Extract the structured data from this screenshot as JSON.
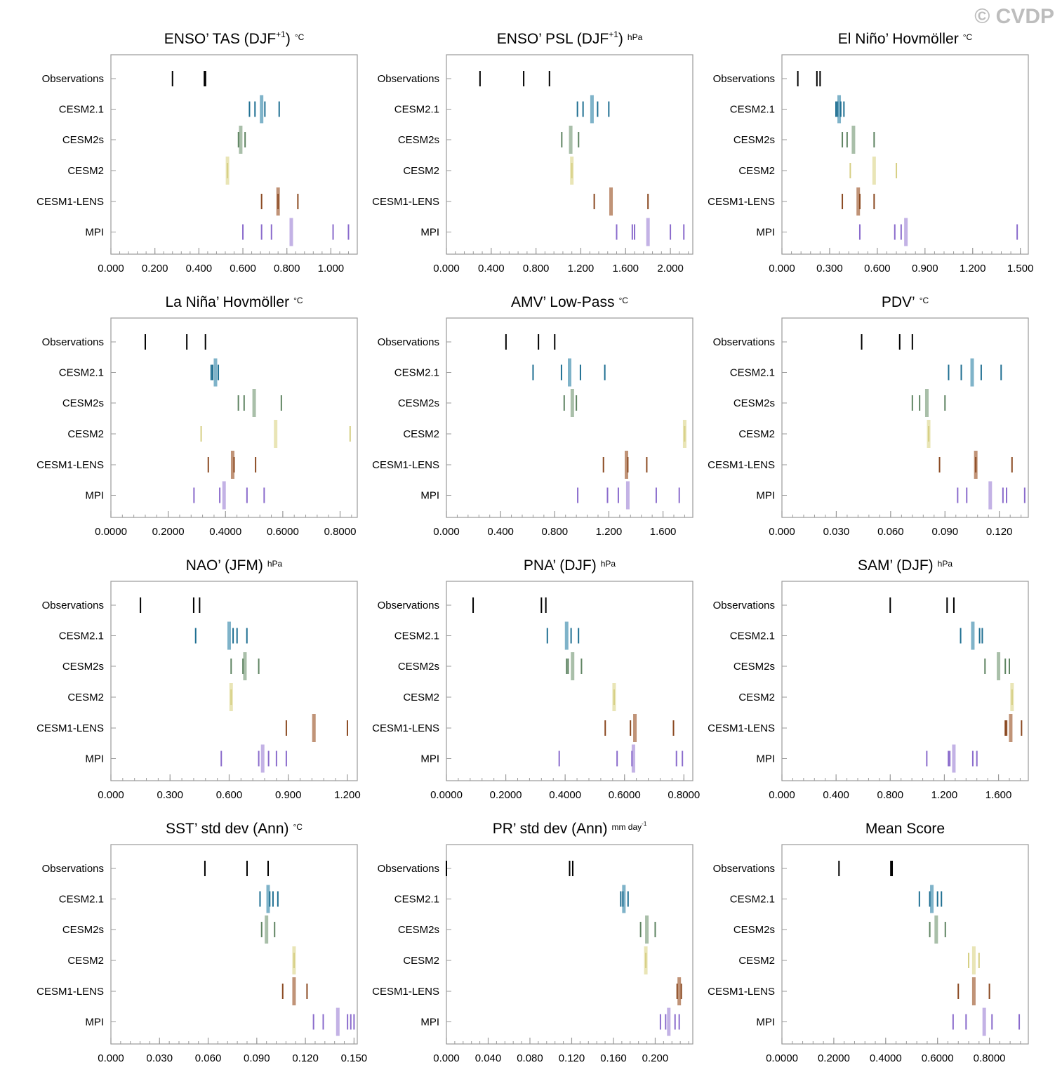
{
  "watermark": "© CVDP",
  "rows": [
    "Observations",
    "CESM2.1",
    "CESM2s",
    "CESM2",
    "CESM1-LENS",
    "MPI"
  ],
  "colors": {
    "Observations": {
      "thin": "#000000",
      "thick": "#000000"
    },
    "CESM2.1": {
      "thin": "#1f6f92",
      "thick": "#7fb3c9"
    },
    "CESM2s": {
      "thin": "#5f8462",
      "thick": "#a9bfa9"
    },
    "CESM2": {
      "thin": "#d6cf84",
      "thick": "#e9e5b6"
    },
    "CESM1-LENS": {
      "thin": "#8b4a22",
      "thick": "#c09377"
    },
    "MPI": {
      "thin": "#8a6bcc",
      "thick": "#c3b2e5"
    }
  },
  "chart_data": [
    {
      "type": "scatter",
      "title": "ENSO’ TAS (DJF",
      "title_sup": "+1",
      "title_tail": ")",
      "units": "°C",
      "xlim": [
        0,
        1.12
      ],
      "xticks": [
        0,
        0.2,
        0.4,
        0.6,
        0.8,
        1.0
      ],
      "xticklabels": [
        "0.000",
        "0.200",
        "0.400",
        "0.600",
        "0.800",
        "1.000"
      ],
      "series": {
        "Observations": {
          "thin": [
            0.28,
            0.425,
            0.43
          ],
          "thick": null
        },
        "CESM2.1": {
          "thin": [
            0.63,
            0.655,
            0.7,
            0.765
          ],
          "thick": 0.685
        },
        "CESM2s": {
          "thin": [
            0.58,
            0.61
          ],
          "thick": 0.59
        },
        "CESM2": {
          "thin": [
            0.53
          ],
          "thick": 0.53
        },
        "CESM1-LENS": {
          "thin": [
            0.685,
            0.76,
            0.85
          ],
          "thick": 0.76
        },
        "MPI": {
          "thin": [
            0.6,
            0.685,
            0.73,
            1.01,
            1.08
          ],
          "thick": 0.82
        }
      }
    },
    {
      "type": "scatter",
      "title": "ENSO’ PSL (DJF",
      "title_sup": "+1",
      "title_tail": ")",
      "units": "hPa",
      "xlim": [
        0,
        2.2
      ],
      "xticks": [
        0,
        0.4,
        0.8,
        1.2,
        1.6,
        2.0
      ],
      "xticklabels": [
        "0.000",
        "0.400",
        "0.800",
        "1.200",
        "1.600",
        "2.000"
      ],
      "series": {
        "Observations": {
          "thin": [
            0.3,
            0.69,
            0.92
          ],
          "thick": null
        },
        "CESM2.1": {
          "thin": [
            1.17,
            1.22,
            1.35,
            1.45
          ],
          "thick": 1.3
        },
        "CESM2s": {
          "thin": [
            1.03,
            1.18
          ],
          "thick": 1.11
        },
        "CESM2": {
          "thin": [
            1.12
          ],
          "thick": 1.12
        },
        "CESM1-LENS": {
          "thin": [
            1.32,
            1.8
          ],
          "thick": 1.47
        },
        "MPI": {
          "thin": [
            1.52,
            1.66,
            1.68,
            2.0,
            2.12
          ],
          "thick": 1.8
        }
      }
    },
    {
      "type": "scatter",
      "title": "El Niño’ Hovmöller",
      "title_sup": "",
      "title_tail": "",
      "units": "°C",
      "xlim": [
        0,
        1.55
      ],
      "xticks": [
        0,
        0.3,
        0.6,
        0.9,
        1.2,
        1.5
      ],
      "xticklabels": [
        "0.000",
        "0.300",
        "0.600",
        "0.900",
        "1.200",
        "1.500"
      ],
      "series": {
        "Observations": {
          "thin": [
            0.1,
            0.22,
            0.24
          ],
          "thick": null
        },
        "CESM2.1": {
          "thin": [
            0.34,
            0.35,
            0.37,
            0.39
          ],
          "thick": 0.36
        },
        "CESM2s": {
          "thin": [
            0.38,
            0.41,
            0.58
          ],
          "thick": 0.45
        },
        "CESM2": {
          "thin": [
            0.43,
            0.72
          ],
          "thick": 0.58
        },
        "CESM1-LENS": {
          "thin": [
            0.38,
            0.49,
            0.58
          ],
          "thick": 0.48
        },
        "MPI": {
          "thin": [
            0.49,
            0.71,
            0.75,
            1.48
          ],
          "thick": 0.78
        }
      }
    },
    {
      "type": "scatter",
      "title": "La Niña’ Hovmöller",
      "title_sup": "",
      "title_tail": "",
      "units": "°C",
      "xlim": [
        0,
        0.86
      ],
      "xticks": [
        0,
        0.2,
        0.4,
        0.6,
        0.8
      ],
      "xticklabels": [
        "0.0000",
        "0.2000",
        "0.4000",
        "0.6000",
        "0.8000"
      ],
      "series": {
        "Observations": {
          "thin": [
            0.12,
            0.265,
            0.33
          ],
          "thick": null
        },
        "CESM2.1": {
          "thin": [
            0.35,
            0.355,
            0.375
          ],
          "thick": 0.365
        },
        "CESM2s": {
          "thin": [
            0.445,
            0.465,
            0.595
          ],
          "thick": 0.5
        },
        "CESM2": {
          "thin": [
            0.315,
            0.835
          ],
          "thick": 0.575
        },
        "CESM1-LENS": {
          "thin": [
            0.34,
            0.43,
            0.505
          ],
          "thick": 0.425
        },
        "MPI": {
          "thin": [
            0.29,
            0.38,
            0.475,
            0.535
          ],
          "thick": 0.395
        }
      }
    },
    {
      "type": "scatter",
      "title": "AMV’ Low-Pass",
      "title_sup": "",
      "title_tail": "",
      "units": "°C",
      "xlim": [
        0,
        1.82
      ],
      "xticks": [
        0,
        0.4,
        0.8,
        1.2,
        1.6
      ],
      "xticklabels": [
        "0.000",
        "0.400",
        "0.800",
        "1.200",
        "1.600"
      ],
      "series": {
        "Observations": {
          "thin": [
            0.44,
            0.68,
            0.8
          ],
          "thick": null
        },
        "CESM2.1": {
          "thin": [
            0.64,
            0.85,
            0.99,
            1.17
          ],
          "thick": 0.91
        },
        "CESM2s": {
          "thin": [
            0.87,
            0.96
          ],
          "thick": 0.93
        },
        "CESM2": {
          "thin": [
            1.76
          ],
          "thick": 1.76
        },
        "CESM1-LENS": {
          "thin": [
            1.16,
            1.34,
            1.48
          ],
          "thick": 1.33
        },
        "MPI": {
          "thin": [
            0.97,
            1.19,
            1.27,
            1.55,
            1.72
          ],
          "thick": 1.34
        }
      }
    },
    {
      "type": "scatter",
      "title": "PDV’",
      "title_sup": "",
      "title_tail": "",
      "units": "°C",
      "xlim": [
        0,
        0.136
      ],
      "xticks": [
        0,
        0.03,
        0.06,
        0.09,
        0.12
      ],
      "xticklabels": [
        "0.000",
        "0.030",
        "0.060",
        "0.090",
        "0.120"
      ],
      "series": {
        "Observations": {
          "thin": [
            0.044,
            0.065,
            0.072
          ],
          "thick": null
        },
        "CESM2.1": {
          "thin": [
            0.092,
            0.099,
            0.11,
            0.121
          ],
          "thick": 0.105
        },
        "CESM2s": {
          "thin": [
            0.072,
            0.076,
            0.09
          ],
          "thick": 0.08
        },
        "CESM2": {
          "thin": [
            0.081
          ],
          "thick": 0.081
        },
        "CESM1-LENS": {
          "thin": [
            0.087,
            0.107,
            0.127
          ],
          "thick": 0.107
        },
        "MPI": {
          "thin": [
            0.097,
            0.102,
            0.122,
            0.124,
            0.134
          ],
          "thick": 0.115
        }
      }
    },
    {
      "type": "scatter",
      "title": "NAO’ (JFM)",
      "title_sup": "",
      "title_tail": "",
      "units": "hPa",
      "xlim": [
        0,
        1.25
      ],
      "xticks": [
        0,
        0.3,
        0.6,
        0.9,
        1.2
      ],
      "xticklabels": [
        "0.000",
        "0.300",
        "0.600",
        "0.900",
        "1.200"
      ],
      "series": {
        "Observations": {
          "thin": [
            0.15,
            0.42,
            0.45
          ],
          "thick": null
        },
        "CESM2.1": {
          "thin": [
            0.43,
            0.62,
            0.64,
            0.69
          ],
          "thick": 0.6
        },
        "CESM2s": {
          "thin": [
            0.61,
            0.67,
            0.75
          ],
          "thick": 0.68
        },
        "CESM2": {
          "thin": [
            0.61
          ],
          "thick": 0.61
        },
        "CESM1-LENS": {
          "thin": [
            0.89,
            1.2
          ],
          "thick": 1.03
        },
        "MPI": {
          "thin": [
            0.56,
            0.75,
            0.8,
            0.84,
            0.89
          ],
          "thick": 0.77
        }
      }
    },
    {
      "type": "scatter",
      "title": "PNA’ (DJF)",
      "title_sup": "",
      "title_tail": "",
      "units": "hPa",
      "xlim": [
        0,
        0.83
      ],
      "xticks": [
        0,
        0.2,
        0.4,
        0.6,
        0.8
      ],
      "xticklabels": [
        "0.0000",
        "0.2000",
        "0.4000",
        "0.6000",
        "0.8000"
      ],
      "series": {
        "Observations": {
          "thin": [
            0.09,
            0.32,
            0.335
          ],
          "thick": null
        },
        "CESM2.1": {
          "thin": [
            0.34,
            0.42,
            0.445
          ],
          "thick": 0.405
        },
        "CESM2s": {
          "thin": [
            0.405,
            0.41,
            0.455
          ],
          "thick": 0.425
        },
        "CESM2": {
          "thin": [
            0.565
          ],
          "thick": 0.565
        },
        "CESM1-LENS": {
          "thin": [
            0.535,
            0.62,
            0.765
          ],
          "thick": 0.635
        },
        "MPI": {
          "thin": [
            0.38,
            0.575,
            0.625,
            0.775,
            0.795
          ],
          "thick": 0.63
        }
      }
    },
    {
      "type": "scatter",
      "title": "SAM’ (DJF)",
      "title_sup": "",
      "title_tail": "",
      "units": "hPa",
      "xlim": [
        0,
        1.82
      ],
      "xticks": [
        0,
        0.4,
        0.8,
        1.2,
        1.6
      ],
      "xticklabels": [
        "0.000",
        "0.400",
        "0.800",
        "1.200",
        "1.600"
      ],
      "series": {
        "Observations": {
          "thin": [
            0.8,
            1.22,
            1.27
          ],
          "thick": null
        },
        "CESM2.1": {
          "thin": [
            1.32,
            1.46,
            1.48
          ],
          "thick": 1.41
        },
        "CESM2s": {
          "thin": [
            1.5,
            1.65,
            1.68
          ],
          "thick": 1.6
        },
        "CESM2": {
          "thin": [
            1.7
          ],
          "thick": 1.7
        },
        "CESM1-LENS": {
          "thin": [
            1.65,
            1.66,
            1.77
          ],
          "thick": 1.69
        },
        "MPI": {
          "thin": [
            1.07,
            1.23,
            1.24,
            1.41,
            1.44
          ],
          "thick": 1.27
        }
      }
    },
    {
      "type": "scatter",
      "title": "SST’ std dev (Ann)",
      "title_sup": "",
      "title_tail": "",
      "units": "°C",
      "xlim": [
        0,
        0.152
      ],
      "xticks": [
        0,
        0.03,
        0.06,
        0.09,
        0.12,
        0.15
      ],
      "xticklabels": [
        "0.000",
        "0.030",
        "0.060",
        "0.090",
        "0.120",
        "0.150"
      ],
      "series": {
        "Observations": {
          "thin": [
            0.058,
            0.084,
            0.097
          ],
          "thick": null
        },
        "CESM2.1": {
          "thin": [
            0.092,
            0.098,
            0.1,
            0.103
          ],
          "thick": 0.097
        },
        "CESM2s": {
          "thin": [
            0.093,
            0.101
          ],
          "thick": 0.096
        },
        "CESM2": {
          "thin": [
            0.113
          ],
          "thick": 0.113
        },
        "CESM1-LENS": {
          "thin": [
            0.106,
            0.121
          ],
          "thick": 0.113
        },
        "MPI": {
          "thin": [
            0.125,
            0.131,
            0.146,
            0.148,
            0.15
          ],
          "thick": 0.14
        }
      }
    },
    {
      "type": "scatter",
      "title": "PR’ std dev (Ann)",
      "title_sup": "",
      "title_tail": "",
      "units": "mm day",
      "units_sup": "-1",
      "xlim": [
        0,
        0.236
      ],
      "xticks": [
        0,
        0.04,
        0.08,
        0.12,
        0.16,
        0.2
      ],
      "xticklabels": [
        "0.000",
        "0.040",
        "0.080",
        "0.120",
        "0.160",
        "0.200"
      ],
      "series": {
        "Observations": {
          "thin": [
            0.0,
            0.118,
            0.121
          ],
          "thick": null
        },
        "CESM2.1": {
          "thin": [
            0.167,
            0.169,
            0.174
          ],
          "thick": 0.17
        },
        "CESM2s": {
          "thin": [
            0.186,
            0.2
          ],
          "thick": 0.192
        },
        "CESM2": {
          "thin": [
            0.191
          ],
          "thick": 0.191
        },
        "CESM1-LENS": {
          "thin": [
            0.221,
            0.225
          ],
          "thick": 0.223
        },
        "MPI": {
          "thin": [
            0.205,
            0.21,
            0.219,
            0.223
          ],
          "thick": 0.213
        }
      }
    },
    {
      "type": "scatter",
      "title": "Mean Score",
      "title_sup": "",
      "title_tail": "",
      "units": "",
      "xlim": [
        0,
        0.95
      ],
      "xticks": [
        0,
        0.2,
        0.4,
        0.6,
        0.8
      ],
      "xticklabels": [
        "0.0000",
        "0.2000",
        "0.4000",
        "0.6000",
        "0.8000"
      ],
      "series": {
        "Observations": {
          "thin": [
            0.22,
            0.42,
            0.425
          ],
          "thick": null
        },
        "CESM2.1": {
          "thin": [
            0.53,
            0.57,
            0.6,
            0.615
          ],
          "thick": 0.578
        },
        "CESM2s": {
          "thin": [
            0.57,
            0.63
          ],
          "thick": 0.595
        },
        "CESM2": {
          "thin": [
            0.72,
            0.76
          ],
          "thick": 0.74
        },
        "CESM1-LENS": {
          "thin": [
            0.68,
            0.8
          ],
          "thick": 0.74
        },
        "MPI": {
          "thin": [
            0.66,
            0.71,
            0.81,
            0.915
          ],
          "thick": 0.78
        }
      }
    }
  ]
}
